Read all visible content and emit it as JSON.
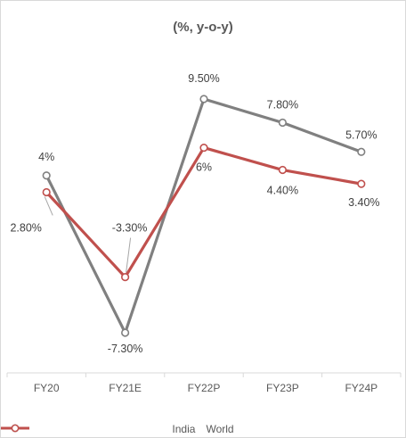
{
  "chart_data": {
    "type": "line",
    "title": "(%, y-o-y)",
    "categories": [
      "FY20",
      "FY21E",
      "FY22P",
      "FY23P",
      "FY24P"
    ],
    "series": [
      {
        "name": "India",
        "values": [
          4.0,
          -7.3,
          9.5,
          7.8,
          5.7
        ],
        "labels": [
          "4%",
          "-7.30%",
          "9.50%",
          "7.80%",
          "5.70%"
        ],
        "color": "#808080"
      },
      {
        "name": "World",
        "values": [
          2.8,
          -3.3,
          6.0,
          4.4,
          3.4
        ],
        "labels": [
          "2.80%",
          "-3.30%",
          "6%",
          "4.40%",
          "3.40%"
        ],
        "color": "#c0504d"
      }
    ],
    "xlabel": "",
    "ylabel": "",
    "grid": false,
    "legend": "bottom"
  }
}
